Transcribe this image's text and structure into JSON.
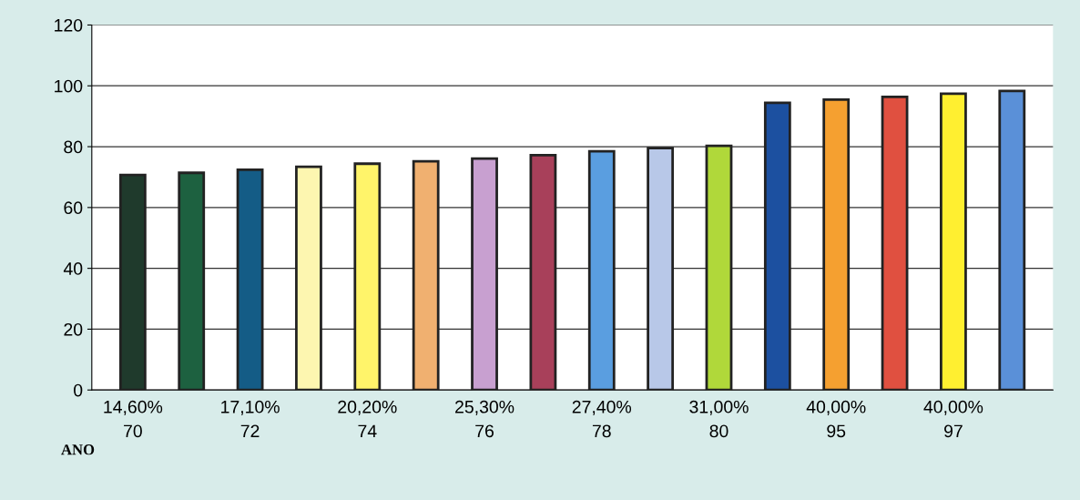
{
  "chart_data": {
    "type": "bar",
    "categories": [
      "14,60%\n70",
      null,
      "17,10%\n72",
      null,
      "20,20%\n74",
      null,
      "25,30%\n76",
      null,
      "27,40%\n78",
      null,
      "31,00%\n80",
      null,
      "40,00%\n95",
      null,
      "40,00%\n97",
      null
    ],
    "values": [
      70.7,
      71.4,
      72.4,
      73.4,
      74.4,
      75.2,
      76.1,
      77.2,
      78.5,
      79.5,
      80.3,
      94.4,
      95.5,
      96.4,
      97.4,
      98.3
    ],
    "colors": [
      "#1f3a2c",
      "#1d6140",
      "#145c86",
      "#fdf6b0",
      "#fff46a",
      "#f0b070",
      "#c8a0d0",
      "#a8405a",
      "#5a9ee0",
      "#b8c8e8",
      "#b0d83a",
      "#1c50a0",
      "#f5a030",
      "#e05040",
      "#ffef30",
      "#5a90d8"
    ],
    "ylim": [
      0,
      120
    ],
    "yticks": [
      0,
      20,
      40,
      60,
      80,
      100,
      120
    ],
    "grid": "y",
    "annotations": [
      "ANO"
    ]
  }
}
